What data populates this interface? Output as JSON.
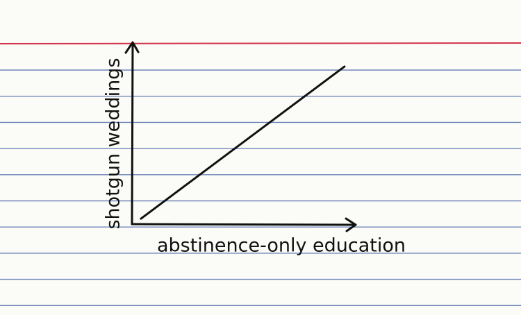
{
  "chart_data": {
    "type": "line",
    "xlabel": "abstinence-only education",
    "ylabel": "shotgun weddings",
    "x": [
      0.04,
      0.95
    ],
    "values": [
      0.03,
      0.87
    ],
    "color": "#111111",
    "xlim": [
      0,
      1
    ],
    "ylim": [
      0,
      1
    ]
  }
}
